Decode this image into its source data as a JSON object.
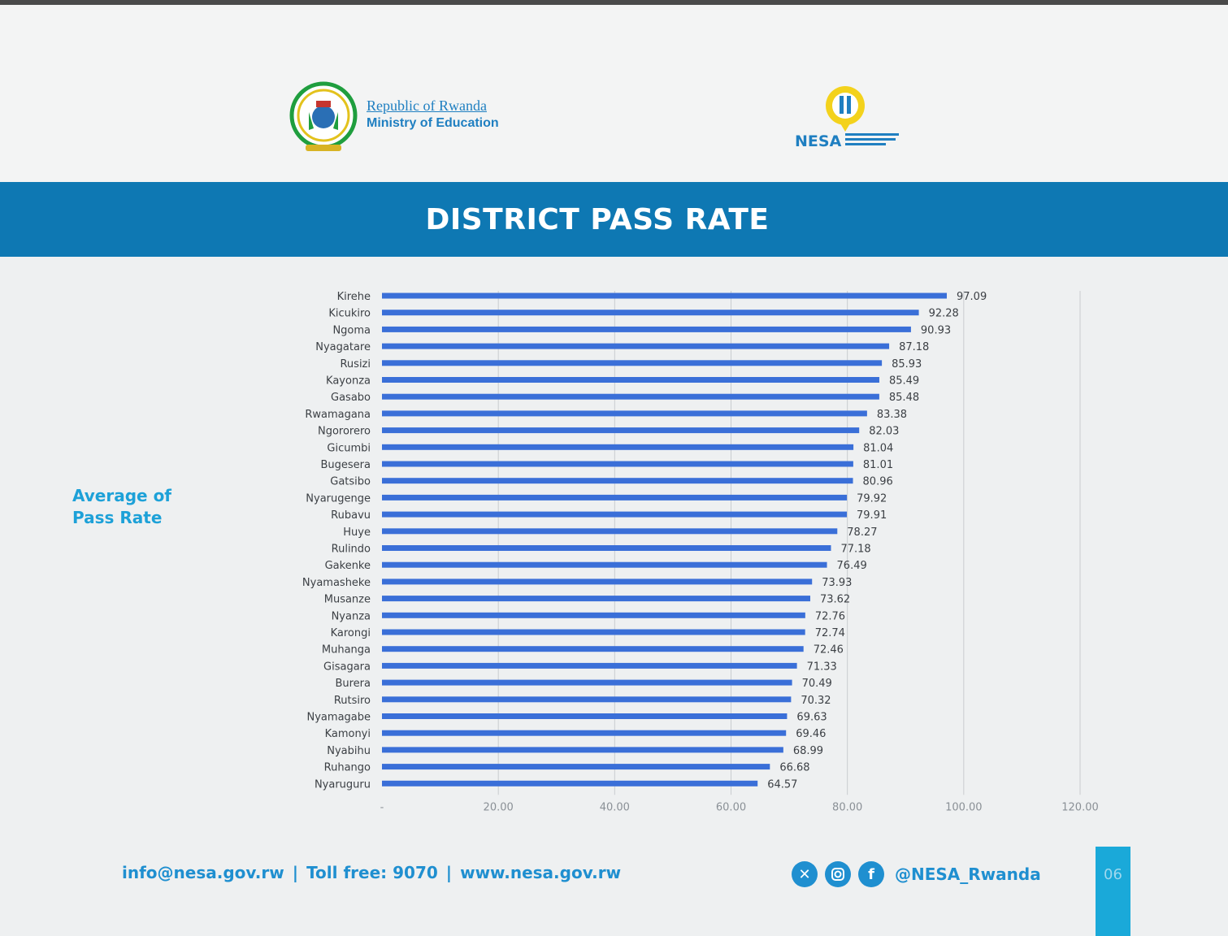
{
  "header": {
    "ministry_line1": "Republic of Rwanda",
    "ministry_line2": "Ministry of Education",
    "nesa_logo_text": "NESA"
  },
  "banner": {
    "title": "DISTRICT PASS RATE"
  },
  "side_label": {
    "line1": "Average of",
    "line2": "Pass Rate"
  },
  "chart_data": {
    "type": "bar",
    "orientation": "horizontal",
    "categories": [
      "Kirehe",
      "Kicukiro",
      "Ngoma",
      "Nyagatare",
      "Rusizi",
      "Kayonza",
      "Gasabo",
      "Rwamagana",
      "Ngororero",
      "Gicumbi",
      "Bugesera",
      "Gatsibo",
      "Nyarugenge",
      "Rubavu",
      "Huye",
      "Rulindo",
      "Gakenke",
      "Nyamasheke",
      "Musanze",
      "Nyanza",
      "Karongi",
      "Muhanga",
      "Gisagara",
      "Burera",
      "Rutsiro",
      "Nyamagabe",
      "Kamonyi",
      "Nyabihu",
      "Ruhango",
      "Nyaruguru"
    ],
    "values": [
      97.09,
      92.28,
      90.93,
      87.18,
      85.93,
      85.49,
      85.48,
      83.38,
      82.03,
      81.04,
      81.01,
      80.96,
      79.92,
      79.91,
      78.27,
      77.18,
      76.49,
      73.93,
      73.62,
      72.76,
      72.74,
      72.46,
      71.33,
      70.49,
      70.32,
      69.63,
      69.46,
      68.99,
      66.68,
      64.57
    ],
    "value_labels": [
      "97.09",
      "92.28",
      "90.93",
      "87.18",
      "85.93",
      "85.49",
      "85.48",
      "83.38",
      "82.03",
      "81.04",
      "81.01",
      "80.96",
      "79.92",
      "79.91",
      "78.27",
      "77.18",
      "76.49",
      "73.93",
      "73.62",
      "72.76",
      "72.74",
      "72.46",
      "71.33",
      "70.49",
      "70.32",
      "69.63",
      "69.46",
      "68.99",
      "66.68",
      "64.57"
    ],
    "xlim": [
      0,
      120
    ],
    "x_ticks": [
      0,
      20,
      40,
      60,
      80,
      100,
      120
    ],
    "x_tick_labels": [
      "-",
      "20.00",
      "40.00",
      "60.00",
      "80.00",
      "100.00",
      "120.00"
    ],
    "grid": true,
    "legend": "none",
    "bar_color": "#3a6fd8"
  },
  "footer": {
    "email": "info@nesa.gov.rw",
    "toll_free": "Toll free: 9070",
    "website": "www.nesa.gov.rw",
    "separator": "|",
    "social_handle": "@NESA_Rwanda",
    "page_number": "06"
  },
  "colors": {
    "banner": "#0e78b3",
    "accent": "#1f8fd0",
    "bar": "#3a6fd8",
    "page_tab": "#1aa9d9"
  }
}
